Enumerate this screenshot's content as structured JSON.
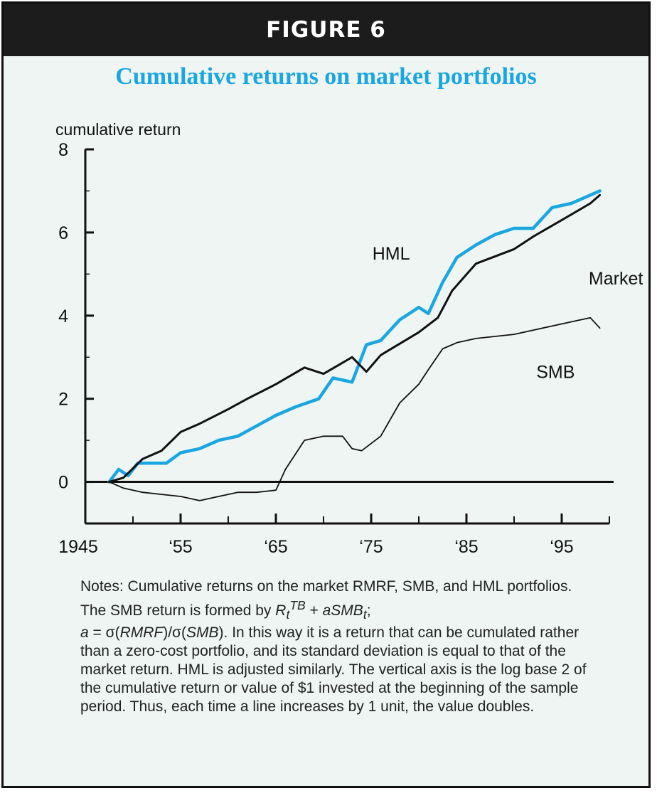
{
  "figure_label": "FIGURE 6",
  "colors": {
    "accent": "#1aa6e0",
    "banner_bg": "#1c1c1c",
    "panel_bg": "#eef5f3",
    "ink": "#111111"
  },
  "notes": {
    "p1": "Notes: Cumulative returns on the market RMRF, SMB, and HML portfolios. The SMB return is formed by ",
    "formula_r": "R",
    "formula_sub_t": "t",
    "formula_sup": "TB",
    "formula_plus": " + ",
    "formula_a": "aSMB",
    "formula_sub_t2": "t",
    "formula_end": ";",
    "a_line_start": "a",
    "a_line_eq": " = σ(",
    "a_rmrf": "RMRF",
    "a_mid": ")/σ(",
    "a_smb": "SMB",
    "rest": "). In this way it is a return that can be cumulated rather than a zero-cost portfolio, and its standard deviation is equal to that of the market return. HML is adjusted similarly. The vertical axis is the log base 2 of the cumulative return or value of $1 invested at the beginning of the sample period. Thus, each time a line increases by 1 unit, the value doubles."
  },
  "chart_data": {
    "type": "line",
    "title": "Cumulative returns on market portfolios",
    "ylabel": "cumulative return",
    "xlabel": "",
    "xlim": [
      1945,
      2000
    ],
    "ylim": [
      -1,
      8
    ],
    "x_ticks": [
      1945,
      1955,
      1965,
      1975,
      1985,
      1995
    ],
    "x_tick_labels": [
      "1945",
      "‘55",
      "‘65",
      "‘75",
      "‘85",
      "‘95"
    ],
    "y_ticks": [
      0,
      2,
      4,
      6,
      8
    ],
    "y_tick_labels": [
      "0",
      "2",
      "4",
      "6",
      "8"
    ],
    "grid": false,
    "series": [
      {
        "name": "HML",
        "color": "#1aa6e0",
        "x": [
          1947.5,
          1948.5,
          1949.5,
          1950.5,
          1952,
          1953.5,
          1955,
          1957,
          1959,
          1961,
          1963,
          1965,
          1967,
          1969.5,
          1971,
          1973,
          1974.5,
          1976,
          1978,
          1980,
          1981,
          1982.5,
          1984,
          1986,
          1988,
          1990,
          1992,
          1994,
          1996,
          1998,
          1999
        ],
        "values": [
          0.0,
          0.3,
          0.15,
          0.45,
          0.45,
          0.45,
          0.7,
          0.8,
          1.0,
          1.1,
          1.35,
          1.6,
          1.8,
          2.0,
          2.5,
          2.4,
          3.3,
          3.4,
          3.9,
          4.2,
          4.05,
          4.8,
          5.4,
          5.7,
          5.95,
          6.1,
          6.1,
          6.6,
          6.7,
          6.9,
          7.0
        ]
      },
      {
        "name": "Market",
        "color": "#111111",
        "x": [
          1947.5,
          1949,
          1951,
          1953,
          1955,
          1957,
          1960,
          1962,
          1965,
          1968,
          1970,
          1973,
          1974.5,
          1976,
          1980,
          1982,
          1983.5,
          1986,
          1990,
          1992,
          1995,
          1998,
          1999
        ],
        "values": [
          0.0,
          0.1,
          0.55,
          0.75,
          1.2,
          1.4,
          1.75,
          2.0,
          2.35,
          2.75,
          2.6,
          3.0,
          2.65,
          3.05,
          3.6,
          3.95,
          4.6,
          5.25,
          5.6,
          5.9,
          6.3,
          6.7,
          6.9
        ]
      },
      {
        "name": "SMB",
        "color": "#111111",
        "x": [
          1947.5,
          1949,
          1951,
          1953,
          1955,
          1957,
          1959,
          1961,
          1963,
          1965,
          1966,
          1968,
          1970,
          1972,
          1973,
          1974,
          1976,
          1978,
          1980,
          1981,
          1982.5,
          1984,
          1986,
          1988,
          1990,
          1992,
          1994,
          1996,
          1998,
          1999
        ],
        "values": [
          0.0,
          -0.15,
          -0.25,
          -0.3,
          -0.35,
          -0.45,
          -0.35,
          -0.25,
          -0.25,
          -0.2,
          0.3,
          1.0,
          1.1,
          1.1,
          0.8,
          0.75,
          1.1,
          1.9,
          2.35,
          2.7,
          3.2,
          3.35,
          3.45,
          3.5,
          3.55,
          3.65,
          3.75,
          3.85,
          3.95,
          3.7
        ]
      }
    ],
    "annotations": [
      {
        "text": "HML",
        "series": "HML"
      },
      {
        "text": "Market",
        "series": "Market"
      },
      {
        "text": "SMB",
        "series": "SMB"
      }
    ]
  }
}
